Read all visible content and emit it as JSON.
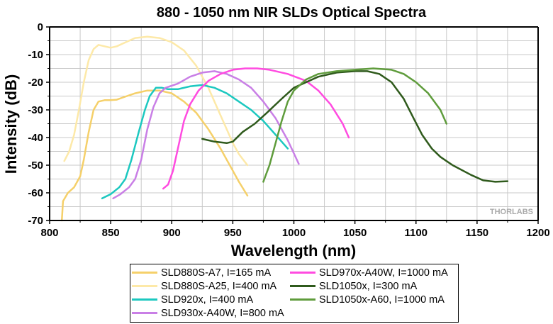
{
  "chart_data": {
    "type": "line",
    "title": "880 - 1050 nm NIR SLDs Optical Spectra",
    "xlabel": "Wavelength (nm)",
    "ylabel": "Intensity (dB)",
    "xlim": [
      800,
      1200
    ],
    "ylim": [
      -70,
      0
    ],
    "xticks": [
      "800",
      "850",
      "900",
      "950",
      "1000",
      "1050",
      "1100",
      "1150",
      "1200"
    ],
    "yticks": [
      "0",
      "-10",
      "-20",
      "-30",
      "-40",
      "-50",
      "-60",
      "-70"
    ],
    "grid": true,
    "legend_position": "bottom",
    "watermark": "THORLABS",
    "series": [
      {
        "name": "SLD880S-A7, I=165 mA",
        "color": "#f5d06a",
        "points": [
          [
            810,
            -70
          ],
          [
            811,
            -63
          ],
          [
            815,
            -60
          ],
          [
            820,
            -58
          ],
          [
            825,
            -54
          ],
          [
            828,
            -48
          ],
          [
            832,
            -38
          ],
          [
            836,
            -30
          ],
          [
            840,
            -27
          ],
          [
            845,
            -26.5
          ],
          [
            850,
            -26.5
          ],
          [
            855,
            -26.3
          ],
          [
            860,
            -25.5
          ],
          [
            870,
            -24
          ],
          [
            880,
            -23
          ],
          [
            890,
            -23
          ],
          [
            900,
            -24
          ],
          [
            910,
            -27
          ],
          [
            920,
            -31
          ],
          [
            930,
            -37
          ],
          [
            940,
            -44
          ],
          [
            950,
            -52
          ],
          [
            955,
            -56
          ],
          [
            962,
            -61
          ]
        ]
      },
      {
        "name": "SLD880S-A25, I=400 mA",
        "color": "#fde9a8",
        "points": [
          [
            812,
            -48.5
          ],
          [
            816,
            -45
          ],
          [
            820,
            -39
          ],
          [
            824,
            -30
          ],
          [
            828,
            -20
          ],
          [
            832,
            -12
          ],
          [
            836,
            -8
          ],
          [
            840,
            -6.5
          ],
          [
            845,
            -7
          ],
          [
            850,
            -7.5
          ],
          [
            855,
            -7
          ],
          [
            860,
            -6
          ],
          [
            870,
            -4
          ],
          [
            880,
            -3.5
          ],
          [
            890,
            -4
          ],
          [
            900,
            -5.5
          ],
          [
            910,
            -8.5
          ],
          [
            920,
            -14
          ],
          [
            930,
            -22
          ],
          [
            940,
            -32
          ],
          [
            950,
            -42
          ],
          [
            955,
            -46
          ],
          [
            962,
            -50
          ]
        ]
      },
      {
        "name": "SLD920x, I=400 mA",
        "color": "#1cc8c0",
        "points": [
          [
            843,
            -62
          ],
          [
            850,
            -60.5
          ],
          [
            857,
            -58
          ],
          [
            862,
            -55
          ],
          [
            867,
            -48
          ],
          [
            873,
            -38
          ],
          [
            878,
            -30
          ],
          [
            882,
            -25
          ],
          [
            887,
            -22
          ],
          [
            892,
            -22
          ],
          [
            897,
            -22.5
          ],
          [
            905,
            -22.5
          ],
          [
            915,
            -21.5
          ],
          [
            925,
            -21
          ],
          [
            935,
            -22
          ],
          [
            945,
            -24
          ],
          [
            955,
            -27
          ],
          [
            965,
            -30
          ],
          [
            975,
            -34
          ],
          [
            985,
            -39
          ],
          [
            995,
            -44
          ]
        ]
      },
      {
        "name": "SLD930x-A40W, I=800 mA",
        "color": "#c97fe6",
        "points": [
          [
            852,
            -62
          ],
          [
            858,
            -60.5
          ],
          [
            865,
            -58
          ],
          [
            870,
            -55
          ],
          [
            875,
            -48
          ],
          [
            880,
            -37
          ],
          [
            885,
            -29
          ],
          [
            890,
            -24
          ],
          [
            895,
            -22
          ],
          [
            905,
            -20.5
          ],
          [
            915,
            -18
          ],
          [
            925,
            -16.5
          ],
          [
            935,
            -16
          ],
          [
            945,
            -17
          ],
          [
            955,
            -19
          ],
          [
            965,
            -22
          ],
          [
            975,
            -27
          ],
          [
            985,
            -33
          ],
          [
            995,
            -41
          ],
          [
            1004,
            -49.5
          ]
        ]
      },
      {
        "name": "SLD970x-A40W, I=1000 mA",
        "color": "#ff4be0",
        "points": [
          [
            893,
            -58.5
          ],
          [
            897,
            -57
          ],
          [
            901,
            -52
          ],
          [
            905,
            -44
          ],
          [
            910,
            -34
          ],
          [
            915,
            -28
          ],
          [
            922,
            -23
          ],
          [
            930,
            -19.5
          ],
          [
            940,
            -17
          ],
          [
            950,
            -15.5
          ],
          [
            960,
            -15
          ],
          [
            970,
            -15
          ],
          [
            980,
            -15.5
          ],
          [
            995,
            -17
          ],
          [
            1010,
            -19.5
          ],
          [
            1020,
            -23
          ],
          [
            1030,
            -28
          ],
          [
            1040,
            -35
          ],
          [
            1045,
            -40
          ]
        ]
      },
      {
        "name": "SLD1050x, I=300 mA",
        "color": "#2f5a1c",
        "points": [
          [
            925,
            -40.5
          ],
          [
            935,
            -41.5
          ],
          [
            945,
            -42
          ],
          [
            950,
            -41.5
          ],
          [
            958,
            -38
          ],
          [
            968,
            -35
          ],
          [
            978,
            -31
          ],
          [
            990,
            -26
          ],
          [
            1000,
            -22
          ],
          [
            1010,
            -20
          ],
          [
            1020,
            -18
          ],
          [
            1035,
            -16.5
          ],
          [
            1050,
            -16
          ],
          [
            1060,
            -16
          ],
          [
            1070,
            -17
          ],
          [
            1080,
            -20
          ],
          [
            1090,
            -26
          ],
          [
            1098,
            -33
          ],
          [
            1105,
            -39
          ],
          [
            1113,
            -44
          ],
          [
            1120,
            -47
          ],
          [
            1130,
            -50
          ],
          [
            1145,
            -53.5
          ],
          [
            1155,
            -55.5
          ],
          [
            1165,
            -56
          ],
          [
            1175,
            -55.8
          ]
        ]
      },
      {
        "name": "SLD1050x-A60, I=1000 mA",
        "color": "#5f9c3c",
        "points": [
          [
            975,
            -56
          ],
          [
            980,
            -50
          ],
          [
            985,
            -42
          ],
          [
            990,
            -34
          ],
          [
            995,
            -27
          ],
          [
            1000,
            -23
          ],
          [
            1010,
            -19
          ],
          [
            1020,
            -17
          ],
          [
            1035,
            -16
          ],
          [
            1050,
            -15.5
          ],
          [
            1065,
            -15
          ],
          [
            1080,
            -15.5
          ],
          [
            1090,
            -17
          ],
          [
            1100,
            -20
          ],
          [
            1110,
            -24
          ],
          [
            1120,
            -30
          ],
          [
            1125,
            -35
          ]
        ]
      }
    ]
  },
  "legend": {
    "items": [
      {
        "label": "SLD880S-A7, I=165 mA",
        "color": "#f5d06a"
      },
      {
        "label": "SLD880S-A25, I=400 mA",
        "color": "#fde9a8"
      },
      {
        "label": "SLD920x, I=400 mA",
        "color": "#1cc8c0"
      },
      {
        "label": "SLD930x-A40W, I=800 mA",
        "color": "#c97fe6"
      },
      {
        "label": "SLD970x-A40W, I=1000 mA",
        "color": "#ff4be0"
      },
      {
        "label": "SLD1050x, I=300 mA",
        "color": "#2f5a1c"
      },
      {
        "label": "SLD1050x-A60, I=1000 mA",
        "color": "#5f9c3c"
      }
    ]
  }
}
